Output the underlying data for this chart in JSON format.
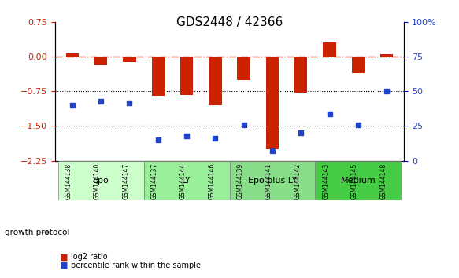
{
  "title": "GDS2448 / 42366",
  "samples": [
    "GSM144138",
    "GSM144140",
    "GSM144147",
    "GSM144137",
    "GSM144144",
    "GSM144146",
    "GSM144139",
    "GSM144141",
    "GSM144142",
    "GSM144143",
    "GSM144145",
    "GSM144148"
  ],
  "log2_ratio": [
    0.07,
    -0.18,
    -0.12,
    -0.85,
    -0.82,
    -1.05,
    -0.5,
    -2.0,
    -0.78,
    0.32,
    -0.35,
    0.05
  ],
  "percentile_rank": [
    40,
    43,
    42,
    15,
    18,
    16,
    26,
    7,
    20,
    34,
    26,
    50
  ],
  "groups": [
    {
      "label": "Epo",
      "start": 0,
      "end": 3,
      "color": "#ccffcc"
    },
    {
      "label": "LY",
      "start": 3,
      "end": 6,
      "color": "#99ee99"
    },
    {
      "label": "Epo plus LY",
      "start": 6,
      "end": 9,
      "color": "#88dd88"
    },
    {
      "label": "Medium",
      "start": 9,
      "end": 12,
      "color": "#44cc44"
    }
  ],
  "bar_color": "#cc2200",
  "dot_color": "#2244cc",
  "left_ylim": [
    -2.25,
    0.75
  ],
  "left_yticks": [
    0.75,
    0,
    -0.75,
    -1.5,
    -2.25
  ],
  "right_ylim": [
    0,
    100
  ],
  "right_yticks": [
    0,
    25,
    50,
    75,
    100
  ],
  "right_yticklabels": [
    "0",
    "25",
    "50",
    "75",
    "100%"
  ],
  "hline_y": [
    0,
    -0.75,
    -1.5
  ],
  "dotted_hlines": [
    -0.75,
    -1.5
  ],
  "legend_bar_label": "log2 ratio",
  "legend_dot_label": "percentile rank within the sample",
  "group_label": "growth protocol",
  "title_fontsize": 11,
  "tick_fontsize": 7,
  "group_fontsize": 8
}
